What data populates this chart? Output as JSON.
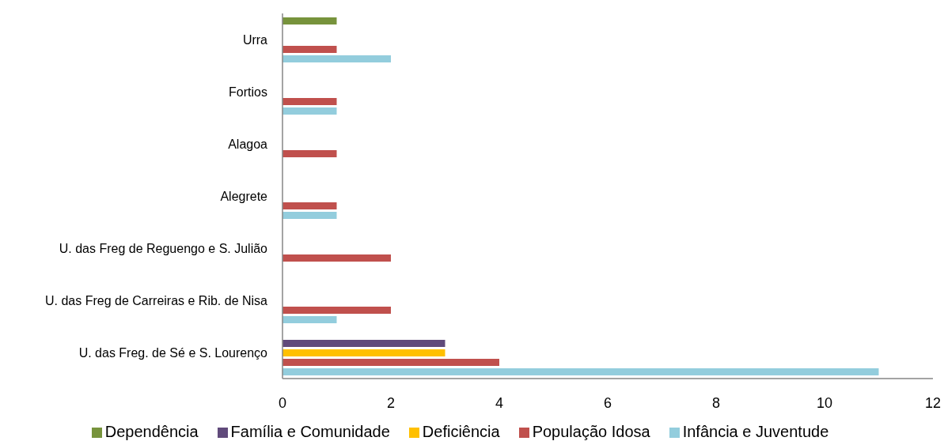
{
  "chart_data": {
    "type": "bar",
    "orientation": "horizontal",
    "categories": [
      "Urra",
      "Fortios",
      "Alagoa",
      "Alegrete",
      "U. das Freg de Reguengo e S. Julião",
      "U. das Freg de Carreiras e Rib. de Nisa",
      "U. das Freg. de Sé e S. Lourenço"
    ],
    "series": [
      {
        "name": "Dependência",
        "color": "#77933c",
        "values": [
          1,
          null,
          null,
          null,
          null,
          null,
          null
        ]
      },
      {
        "name": "Família e Comunidade",
        "color": "#604a7b",
        "values": [
          null,
          null,
          null,
          null,
          null,
          null,
          3
        ]
      },
      {
        "name": "Deficiência",
        "color": "#ffc000",
        "values": [
          null,
          null,
          null,
          null,
          null,
          null,
          3
        ]
      },
      {
        "name": "População Idosa",
        "color": "#c0504d",
        "values": [
          1,
          1,
          1,
          1,
          2,
          2,
          4
        ]
      },
      {
        "name": "Infância e Juventude",
        "color": "#93cddd",
        "values": [
          2,
          1,
          null,
          1,
          null,
          1,
          11
        ]
      }
    ],
    "xlim": [
      0,
      12
    ],
    "xticks": [
      0,
      2,
      4,
      6,
      8,
      10,
      12
    ],
    "legend": "bottom"
  }
}
